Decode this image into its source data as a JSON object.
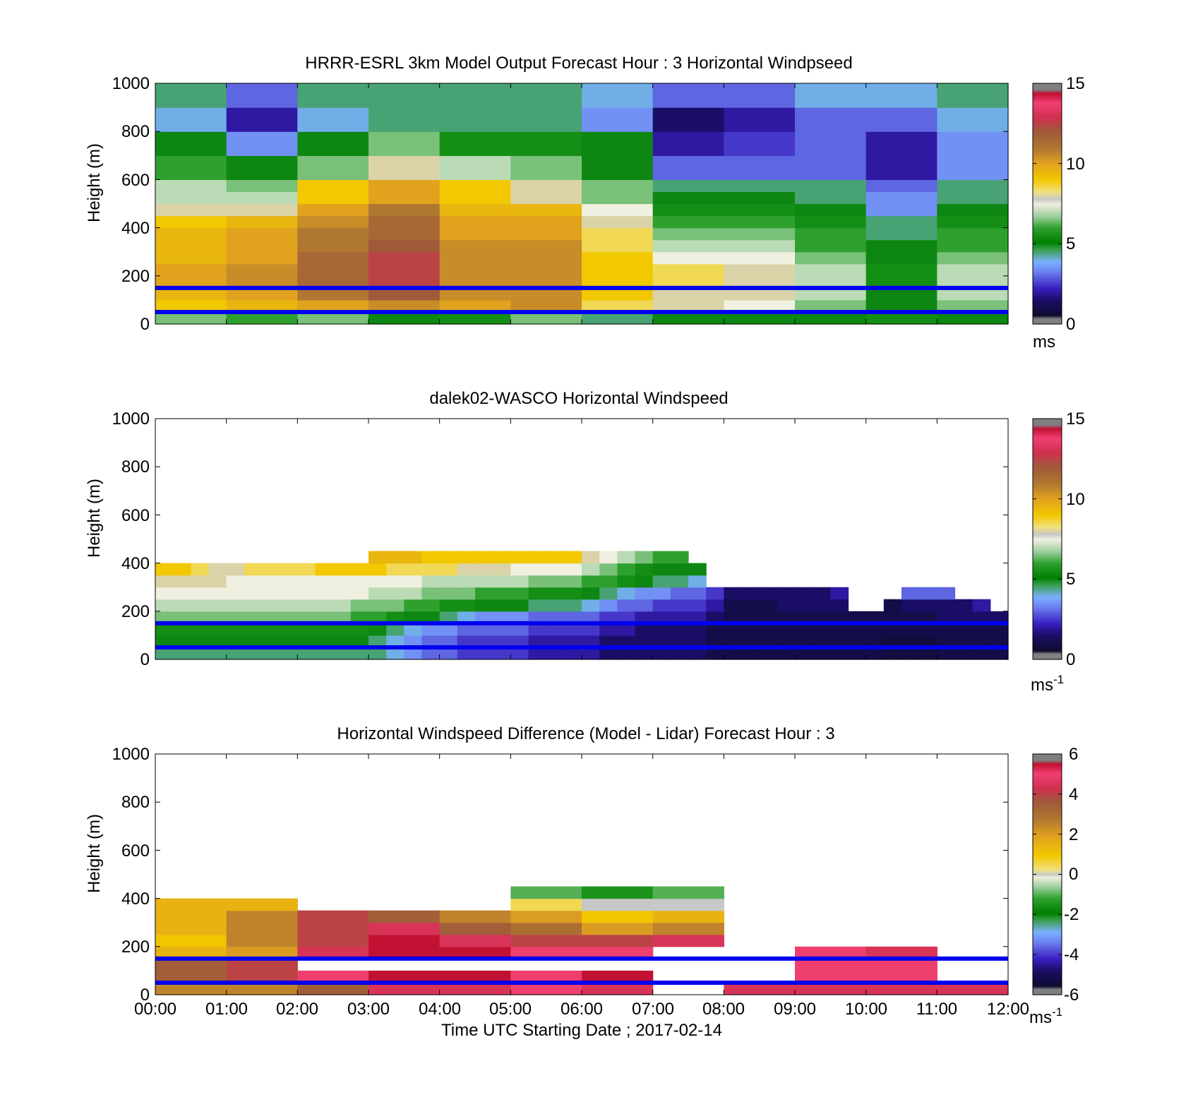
{
  "figure": {
    "xlabel": "Time UTC  Starting Date ; 2017-02-14",
    "x_ticks": [
      "00:00",
      "01:00",
      "02:00",
      "03:00",
      "04:00",
      "05:00",
      "06:00",
      "07:00",
      "08:00",
      "09:00",
      "10:00",
      "11:00",
      "12:00"
    ],
    "ref_lines_height_m": [
      150,
      50
    ],
    "ref_line_color": "#0000ee"
  },
  "chart_data": [
    {
      "type": "heatmap",
      "title": "HRRR-ESRL 3km Model Output   Forecast Hour : 3 Horizontal Windpseed",
      "ylabel": "Height (m)",
      "ylim": [
        0,
        1000
      ],
      "y_ticks": [
        0,
        200,
        400,
        600,
        800,
        1000
      ],
      "xlim": [
        0,
        12
      ],
      "colorbar": {
        "ticks": [
          0,
          5,
          10,
          15
        ],
        "unit": "ms",
        "unit_sup": "",
        "clim": [
          0,
          15
        ],
        "colormap": "windspeed"
      },
      "x_starts": [
        0,
        1,
        2,
        3,
        4,
        5,
        6,
        7,
        8,
        9,
        10,
        11
      ],
      "x_width": 1,
      "heights": [
        0,
        50,
        100,
        150,
        200,
        250,
        300,
        350,
        400,
        450,
        500,
        550,
        600,
        700,
        800,
        900,
        1000
      ],
      "values_ms": [
        [
          6.5,
          6.0,
          6.5,
          5.0,
          5.5,
          6.5,
          4.5,
          5.0,
          5.0,
          5.0,
          5.5,
          5.0
        ],
        [
          9.0,
          9.5,
          10.0,
          10.5,
          10.0,
          10.5,
          8.5,
          8.0,
          7.5,
          6.5,
          5.0,
          6.5
        ],
        [
          9.5,
          10.0,
          11.0,
          12.0,
          10.5,
          10.5,
          9.0,
          8.0,
          8.0,
          7.0,
          5.0,
          7.0
        ],
        [
          10.0,
          10.5,
          11.5,
          12.5,
          10.5,
          10.5,
          9.0,
          8.5,
          8.0,
          7.0,
          5.5,
          7.0
        ],
        [
          10.0,
          10.5,
          11.5,
          12.5,
          10.5,
          10.5,
          9.0,
          8.5,
          8.0,
          7.0,
          5.5,
          7.0
        ],
        [
          9.5,
          10.0,
          11.5,
          12.5,
          10.5,
          10.5,
          9.0,
          7.5,
          7.5,
          6.5,
          5.0,
          6.5
        ],
        [
          9.5,
          10.0,
          11.0,
          12.0,
          10.5,
          10.5,
          8.5,
          7.0,
          7.0,
          6.0,
          5.0,
          6.0
        ],
        [
          9.5,
          10.0,
          11.0,
          11.5,
          10.0,
          10.0,
          8.5,
          6.5,
          6.5,
          6.0,
          4.5,
          6.0
        ],
        [
          9.0,
          9.5,
          10.5,
          11.5,
          10.0,
          10.0,
          8.0,
          6.0,
          6.0,
          5.5,
          4.5,
          5.5
        ],
        [
          8.0,
          8.0,
          10.0,
          11.0,
          9.5,
          9.5,
          7.5,
          5.5,
          5.5,
          5.0,
          3.5,
          5.0
        ],
        [
          7.0,
          7.0,
          9.0,
          10.0,
          9.0,
          8.0,
          6.5,
          5.0,
          5.0,
          4.5,
          3.5,
          4.5
        ],
        [
          7.0,
          6.5,
          9.0,
          10.0,
          9.0,
          8.0,
          6.5,
          4.5,
          4.5,
          4.5,
          3.0,
          4.5
        ],
        [
          6.0,
          5.0,
          6.5,
          8.0,
          7.0,
          6.5,
          5.0,
          3.0,
          3.0,
          3.0,
          2.0,
          3.5
        ],
        [
          5.0,
          3.5,
          5.0,
          6.5,
          5.5,
          5.5,
          5.0,
          2.0,
          2.5,
          3.0,
          2.0,
          3.5
        ],
        [
          4.0,
          2.0,
          4.0,
          4.5,
          4.5,
          4.5,
          3.5,
          1.5,
          2.0,
          3.0,
          3.0,
          4.0
        ],
        [
          4.5,
          3.0,
          4.5,
          4.5,
          4.5,
          4.5,
          4.0,
          3.0,
          3.0,
          4.0,
          4.0,
          4.5
        ]
      ]
    },
    {
      "type": "heatmap",
      "title": "dalek02-WASCO  Horizontal Windspeed",
      "ylabel": "Height (m)",
      "ylim": [
        0,
        1000
      ],
      "y_ticks": [
        0,
        200,
        400,
        600,
        800,
        1000
      ],
      "xlim": [
        0,
        12
      ],
      "colorbar": {
        "ticks": [
          0,
          5,
          10,
          15
        ],
        "unit": "ms",
        "unit_sup": "-1",
        "clim": [
          0,
          15
        ],
        "colormap": "windspeed"
      },
      "x_starts": [
        0,
        0.25,
        0.5,
        0.75,
        1,
        1.25,
        1.5,
        1.75,
        2,
        2.25,
        2.5,
        2.75,
        3,
        3.25,
        3.5,
        3.75,
        4,
        4.25,
        4.5,
        4.75,
        5,
        5.25,
        5.5,
        5.75,
        6,
        6.25,
        6.5,
        6.75,
        7,
        7.25,
        7.5,
        7.75,
        8,
        8.25,
        8.5,
        8.75,
        9,
        9.25,
        9.5,
        9.75,
        10,
        10.25,
        10.5,
        10.75,
        11,
        11.25,
        11.5,
        11.75
      ],
      "x_width": 0.25,
      "heights": [
        0,
        50,
        100,
        150,
        200,
        250,
        300,
        350,
        400,
        450
      ],
      "values_ms": [
        [
          4.5,
          4.5,
          4.5,
          4.5,
          4.5,
          4.5,
          4.5,
          4.5,
          4.5,
          4.5,
          4.5,
          4.5,
          4.5,
          4.0,
          3.5,
          3.0,
          3.0,
          2.5,
          2.5,
          2.5,
          2.5,
          2.0,
          2.0,
          2.0,
          2.0,
          1.5,
          1.5,
          1.5,
          1.5,
          1.5,
          1.5,
          1.0,
          1.0,
          1.0,
          1.0,
          1.0,
          1.0,
          1.0,
          1.0,
          1.0,
          1.0,
          0.8,
          0.8,
          0.8,
          1.0,
          1.0,
          1.0,
          1.0
        ],
        [
          5.0,
          5.0,
          5.0,
          5.0,
          5.0,
          5.0,
          5.0,
          5.0,
          5.0,
          5.0,
          5.0,
          5.0,
          4.5,
          4.0,
          3.5,
          3.0,
          3.0,
          2.5,
          2.5,
          2.5,
          2.5,
          2.0,
          2.0,
          2.0,
          2.0,
          1.5,
          1.5,
          1.5,
          1.5,
          1.5,
          1.5,
          1.0,
          1.0,
          1.0,
          1.0,
          1.0,
          1.0,
          1.0,
          1.0,
          1.0,
          1.0,
          0.8,
          0.8,
          0.8,
          1.0,
          1.0,
          1.0,
          1.0
        ],
        [
          5.5,
          5.5,
          5.5,
          5.5,
          5.5,
          5.5,
          5.5,
          5.5,
          5.5,
          5.5,
          5.5,
          5.5,
          5.0,
          4.5,
          4.0,
          3.5,
          3.5,
          3.0,
          3.0,
          3.0,
          3.0,
          2.5,
          2.5,
          2.5,
          2.5,
          2.0,
          2.0,
          1.5,
          1.5,
          1.5,
          1.5,
          1.0,
          1.0,
          1.0,
          1.0,
          1.0,
          1.0,
          1.0,
          1.0,
          1.0,
          1.0,
          1.0,
          1.0,
          1.0,
          1.0,
          1.0,
          1.0,
          1.0
        ],
        [
          6.5,
          6.5,
          6.5,
          6.5,
          6.5,
          6.5,
          6.5,
          6.5,
          6.5,
          6.5,
          6.5,
          6.0,
          6.0,
          5.5,
          5.0,
          5.0,
          4.5,
          4.0,
          3.5,
          3.5,
          3.5,
          3.0,
          3.0,
          3.0,
          3.0,
          2.5,
          2.5,
          2.0,
          2.0,
          2.0,
          2.0,
          1.5,
          1.0,
          1.0,
          1.0,
          1.0,
          1.0,
          1.0,
          1.0,
          1.0,
          1.0,
          1.0,
          1.0,
          1.0,
          1.5,
          1.5,
          1.5,
          1.5
        ],
        [
          7.0,
          7.0,
          7.0,
          7.0,
          7.0,
          7.0,
          7.0,
          7.0,
          7.0,
          7.0,
          7.0,
          6.5,
          6.5,
          6.5,
          6.0,
          6.0,
          5.5,
          5.5,
          5.0,
          5.0,
          5.0,
          4.5,
          4.5,
          4.5,
          4.0,
          3.5,
          3.0,
          3.0,
          2.5,
          2.5,
          2.5,
          2.0,
          1.0,
          1.0,
          1.0,
          1.5,
          1.5,
          1.5,
          1.5,
          null,
          null,
          1.0,
          1.5,
          1.5,
          1.5,
          1.5,
          2.0,
          null
        ],
        [
          7.5,
          7.5,
          7.5,
          7.5,
          7.5,
          7.5,
          7.5,
          7.5,
          7.5,
          7.5,
          7.5,
          7.5,
          7.0,
          7.0,
          7.0,
          6.5,
          6.5,
          6.5,
          6.0,
          6.0,
          6.0,
          5.5,
          5.5,
          5.5,
          5.0,
          4.5,
          4.0,
          3.5,
          3.5,
          3.0,
          3.0,
          2.5,
          1.5,
          1.5,
          1.5,
          1.5,
          1.5,
          1.5,
          2.0,
          null,
          null,
          null,
          3.0,
          3.0,
          3.0,
          null,
          null,
          null
        ],
        [
          8.0,
          8.0,
          8.0,
          8.0,
          7.5,
          7.5,
          7.5,
          7.5,
          7.5,
          7.5,
          7.5,
          7.5,
          7.5,
          7.5,
          7.5,
          7.0,
          7.0,
          7.0,
          7.0,
          7.0,
          7.0,
          6.5,
          6.5,
          6.5,
          6.0,
          6.0,
          5.5,
          5.0,
          4.5,
          4.5,
          4.0,
          null,
          null,
          null,
          null,
          null,
          null,
          null,
          null,
          null,
          null,
          null,
          null,
          null,
          null,
          null,
          null,
          null
        ],
        [
          9.0,
          9.0,
          8.5,
          8.0,
          8.0,
          8.5,
          8.5,
          8.5,
          8.5,
          9.0,
          9.0,
          9.0,
          9.0,
          8.5,
          8.5,
          8.5,
          8.5,
          8.0,
          8.0,
          8.0,
          7.5,
          7.5,
          7.5,
          7.5,
          7.0,
          6.5,
          6.0,
          5.5,
          5.0,
          5.0,
          5.0,
          null,
          null,
          null,
          null,
          null,
          null,
          null,
          null,
          null,
          null,
          null,
          null,
          null,
          null,
          null,
          null,
          null
        ],
        [
          null,
          null,
          null,
          null,
          null,
          null,
          null,
          null,
          null,
          null,
          null,
          null,
          9.5,
          9.5,
          9.5,
          9.0,
          9.0,
          9.0,
          9.0,
          9.0,
          9.0,
          9.0,
          9.0,
          9.0,
          8.0,
          7.5,
          7.0,
          6.5,
          6.0,
          6.0,
          null,
          null,
          null,
          null,
          null,
          null,
          null,
          null,
          null,
          null,
          null,
          null,
          null,
          null,
          null,
          null,
          null,
          null
        ]
      ]
    },
    {
      "type": "heatmap",
      "title": "Horizontal Windspeed Difference (Model - Lidar) Forecast Hour : 3",
      "ylabel": "Height (m)",
      "ylim": [
        0,
        1000
      ],
      "y_ticks": [
        0,
        200,
        400,
        600,
        800,
        1000
      ],
      "xlim": [
        0,
        12
      ],
      "colorbar": {
        "ticks": [
          -6,
          -4,
          -2,
          0,
          2,
          4,
          6
        ],
        "unit": "ms",
        "unit_sup": "-1",
        "clim": [
          -6,
          6
        ],
        "colormap": "difference"
      },
      "x_starts": [
        0,
        1,
        2,
        3,
        4,
        5,
        6,
        7,
        8,
        9,
        10,
        11
      ],
      "x_width": 1,
      "heights": [
        0,
        50,
        100,
        150,
        200,
        250,
        300,
        350,
        400,
        450
      ],
      "values_ms": [
        [
          2.5,
          2.5,
          3.5,
          4.5,
          4.5,
          5.0,
          4.5,
          null,
          4.5,
          4.5,
          4.5,
          4.5
        ],
        [
          3.5,
          4.0,
          5.0,
          5.5,
          5.5,
          5.0,
          5.5,
          null,
          null,
          5.0,
          5.0,
          null
        ],
        [
          3.5,
          4.0,
          null,
          null,
          null,
          null,
          null,
          null,
          null,
          5.0,
          5.0,
          null
        ],
        [
          1.5,
          2.0,
          4.5,
          5.5,
          5.5,
          5.0,
          5.0,
          null,
          null,
          5.0,
          4.5,
          null
        ],
        [
          1.0,
          2.5,
          4.0,
          5.5,
          4.5,
          4.0,
          4.0,
          4.5,
          null,
          null,
          null,
          null
        ],
        [
          1.5,
          2.5,
          4.0,
          4.5,
          3.5,
          3.0,
          2.0,
          2.5,
          null,
          null,
          null,
          null
        ],
        [
          1.5,
          2.5,
          4.0,
          3.5,
          2.5,
          2.0,
          1.0,
          1.5,
          null,
          null,
          null,
          null
        ],
        [
          1.5,
          1.5,
          null,
          null,
          null,
          0.5,
          0.0,
          0.0,
          null,
          null,
          null,
          null
        ],
        [
          null,
          null,
          null,
          null,
          null,
          -1.0,
          -1.5,
          -1.0,
          null,
          null,
          null,
          null
        ]
      ]
    }
  ]
}
